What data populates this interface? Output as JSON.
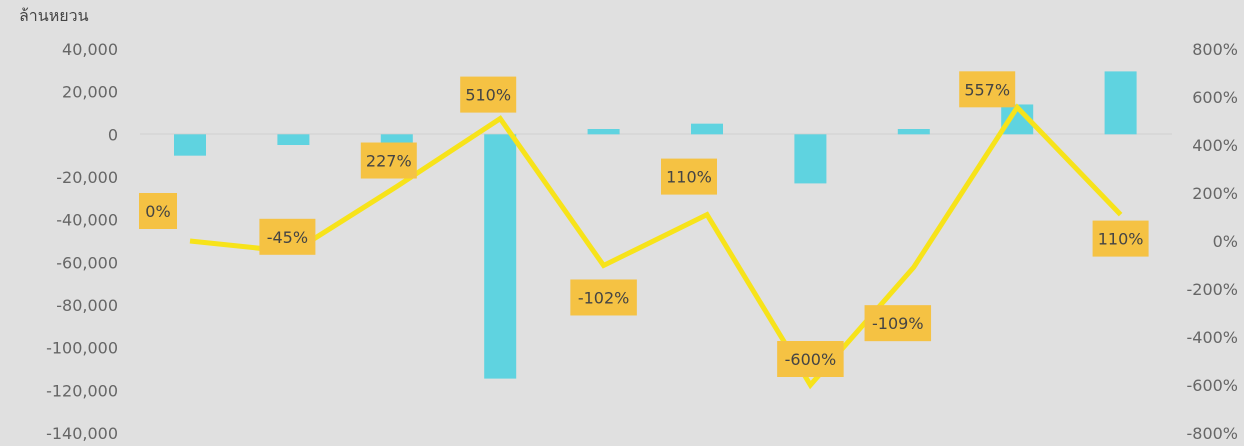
{
  "chart_data": {
    "type": "bar",
    "title": "",
    "unit_label": "ล้านหยวน",
    "categories": [
      "",
      "",
      "",
      "",
      "",
      "",
      "",
      "",
      "",
      ""
    ],
    "y_left": {
      "ticks": [
        "40,000",
        "20,000",
        "0",
        "-20,000",
        "-40,000",
        "-60,000",
        "-80,000",
        "-100,000",
        "-120,000",
        "-140,000"
      ],
      "range": [
        -140000,
        40000
      ]
    },
    "y_right": {
      "ticks": [
        "800%",
        "600%",
        "400%",
        "200%",
        "0%",
        "-200%",
        "-400%",
        "-600%",
        "-800%"
      ],
      "range": [
        -800,
        800
      ]
    },
    "series": [
      {
        "type": "bar",
        "axis": "left",
        "color": "#5fd3e0",
        "values": [
          -10000,
          -5000,
          -18500,
          -114500,
          2500,
          5000,
          -23000,
          2500,
          14000,
          29500
        ]
      },
      {
        "type": "line",
        "axis": "right",
        "color": "#f7e31a",
        "values": [
          0,
          -45,
          227,
          510,
          -102,
          110,
          -600,
          -109,
          557,
          110
        ],
        "labels": [
          "0%",
          "-45%",
          "227%",
          "510%",
          "-102%",
          "110%",
          "-600%",
          "-109%",
          "557%",
          "110%"
        ]
      }
    ],
    "label_box_color": "#f5c243",
    "grid": false,
    "legend": "none"
  }
}
